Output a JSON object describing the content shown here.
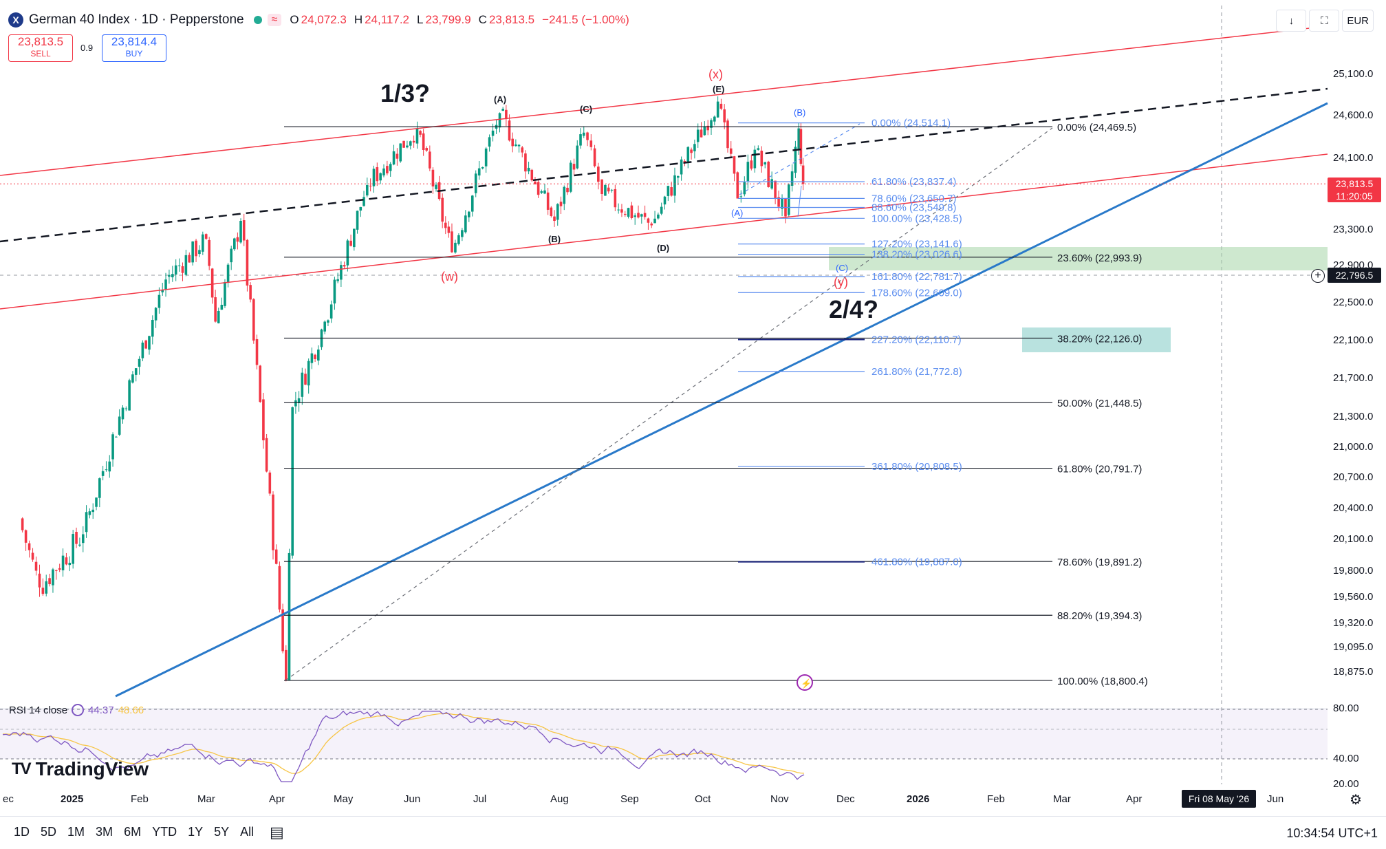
{
  "header": {
    "symbol_logo": "X",
    "title": "German 40 Index · 1D · Pepperstone",
    "wave_badge": "≈",
    "ohlc": [
      {
        "label": "O",
        "value": "24,072.3"
      },
      {
        "label": "H",
        "value": "24,117.2"
      },
      {
        "label": "L",
        "value": "23,799.9"
      },
      {
        "label": "C",
        "value": "23,813.5"
      },
      {
        "label": "",
        "value": "−241.5 (−1.00%)"
      }
    ]
  },
  "trade": {
    "sell_price": "23,813.5",
    "sell_label": "SELL",
    "spread": "0.9",
    "buy_price": "23,814.4",
    "buy_label": "BUY"
  },
  "toolbar_right": {
    "download_icon": "↓",
    "fullscreen_icon": "⛶",
    "currency": "EUR"
  },
  "price_axis": {
    "labels": [
      {
        "text": "25,100.0",
        "p": 25100
      },
      {
        "text": "24,600.0",
        "p": 24600
      },
      {
        "text": "24,100.0",
        "p": 24100
      },
      {
        "text": "23,300.0",
        "p": 23300
      },
      {
        "text": "22,900.0",
        "p": 22900
      },
      {
        "text": "22,500.0",
        "p": 22500
      },
      {
        "text": "22,100.0",
        "p": 22100
      },
      {
        "text": "21,700.0",
        "p": 21700
      },
      {
        "text": "21,300.0",
        "p": 21300
      },
      {
        "text": "21,000.0",
        "p": 21000
      },
      {
        "text": "20,700.0",
        "p": 20700
      },
      {
        "text": "20,400.0",
        "p": 20400
      },
      {
        "text": "20,100.0",
        "p": 20100
      },
      {
        "text": "19,800.0",
        "p": 19800
      },
      {
        "text": "19,560.0",
        "p": 19560
      },
      {
        "text": "19,320.0",
        "p": 19320
      },
      {
        "text": "19,095.0",
        "p": 19095
      },
      {
        "text": "18,875.0",
        "p": 18875
      }
    ],
    "current_price": "23,813.5",
    "countdown": "11:20:05",
    "crosshair_price": "22,796.5",
    "crosshair_plus": "+"
  },
  "fib_retracement_levels": [
    {
      "label": "0.00% (24,469.5)",
      "p": 24469.5
    },
    {
      "label": "23.60% (22,993.9)",
      "p": 22993.9
    },
    {
      "label": "38.20% (22,126.0)",
      "p": 22126.0
    },
    {
      "label": "50.00% (21,448.5)",
      "p": 21448.5
    },
    {
      "label": "61.80% (20,791.7)",
      "p": 20791.7
    },
    {
      "label": "78.60% (19,891.2)",
      "p": 19891.2
    },
    {
      "label": "88.20% (19,394.3)",
      "p": 19394.3
    },
    {
      "label": "100.00% (18,800.4)",
      "p": 18800.4
    }
  ],
  "fib_extension_levels": [
    {
      "label": "0.00% (24,514.1)",
      "p": 24514.1
    },
    {
      "label": "61.80% (23,837.4)",
      "p": 23837.4
    },
    {
      "label": "78.60% (23,650.7)",
      "p": 23650.7
    },
    {
      "label": "88.60% (23,549.8)",
      "p": 23549.8
    },
    {
      "label": "100.00% (23,428.5)",
      "p": 23428.5
    },
    {
      "label": "127.20% (23,141.6)",
      "p": 23141.6
    },
    {
      "label": "138.20% (23,026.6)",
      "p": 23026.6
    },
    {
      "label": "161.80% (22,781.7)",
      "p": 22781.7
    },
    {
      "label": "178.60% (22,609.0)",
      "p": 22609.0
    },
    {
      "label": "227.20% (22,110.7)",
      "p": 22110.7
    },
    {
      "label": "261.80% (21,772.8)",
      "p": 21772.8
    },
    {
      "label": "361.80% (20,808.5)",
      "p": 20808.5
    },
    {
      "label": "461.80% (19,887.0)",
      "p": 19887.0
    }
  ],
  "wave_labels": [
    {
      "text": "1/3?",
      "kind": "big"
    },
    {
      "text": "2/4?",
      "kind": "big"
    },
    {
      "text": "(A)",
      "kind": "black"
    },
    {
      "text": "(B)",
      "kind": "black"
    },
    {
      "text": "(C)",
      "kind": "black"
    },
    {
      "text": "(D)",
      "kind": "black"
    },
    {
      "text": "(E)",
      "kind": "black"
    },
    {
      "text": "(x)",
      "kind": "red"
    },
    {
      "text": "(w)",
      "kind": "red"
    },
    {
      "text": "(y)",
      "kind": "red"
    },
    {
      "text": "(A)",
      "kind": "blue"
    },
    {
      "text": "(B)",
      "kind": "blue"
    },
    {
      "text": "(C)",
      "kind": "blue"
    }
  ],
  "rsi": {
    "label": "RSI 14 close",
    "value1": "44.37",
    "value2": "48.66",
    "levels": [
      {
        "text": "80.00",
        "v": 80
      },
      {
        "text": "40.00",
        "v": 40
      },
      {
        "text": "20.00",
        "v": 20
      }
    ]
  },
  "branding": {
    "logo_mark": "TV",
    "name": "TradingView"
  },
  "time_axis": [
    {
      "text": "ec",
      "bold": false
    },
    {
      "text": "2025",
      "bold": true
    },
    {
      "text": "Feb",
      "bold": false
    },
    {
      "text": "Mar",
      "bold": false
    },
    {
      "text": "Apr",
      "bold": false
    },
    {
      "text": "May",
      "bold": false
    },
    {
      "text": "Jun",
      "bold": false
    },
    {
      "text": "Jul",
      "bold": false
    },
    {
      "text": "Aug",
      "bold": false
    },
    {
      "text": "Sep",
      "bold": false
    },
    {
      "text": "Oct",
      "bold": false
    },
    {
      "text": "Nov",
      "bold": false
    },
    {
      "text": "Dec",
      "bold": false
    },
    {
      "text": "2026",
      "bold": true
    },
    {
      "text": "Feb",
      "bold": false
    },
    {
      "text": "Mar",
      "bold": false
    },
    {
      "text": "Apr",
      "bold": false
    },
    {
      "text": "Jun",
      "bold": false
    }
  ],
  "crosshair_date": "Fri 08 May '26",
  "bottom_bar": {
    "ranges": [
      "1D",
      "5D",
      "1M",
      "3M",
      "6M",
      "YTD",
      "1Y",
      "5Y",
      "All"
    ],
    "clock": "10:34:54 UTC+1"
  },
  "colors": {
    "bull": "#089981",
    "bear": "#f23645",
    "channel": "#f23645",
    "trend": "#2979c9",
    "fib_ext": "#5b8def",
    "rsi": "#7e57c2",
    "rsi_ma": "#f7c545"
  },
  "chart_data": {
    "type": "candlestick",
    "title": "German 40 Index · 1D · Pepperstone",
    "last_close": 23813.5,
    "ylim": [
      18700,
      25300
    ],
    "swing_points": [
      {
        "date": "2024-12-09",
        "price": 20300
      },
      {
        "date": "2024-12-20",
        "price": 19650
      },
      {
        "date": "2025-01-10",
        "price": 20150
      },
      {
        "date": "2025-02-14",
        "price": 22750
      },
      {
        "date": "2025-03-03",
        "price": 23200
      },
      {
        "date": "2025-03-07",
        "price": 22300
      },
      {
        "date": "2025-03-18",
        "price": 23400
      },
      {
        "date": "2025-04-07",
        "price": 18800
      },
      {
        "date": "2025-04-10",
        "price": 21400
      },
      {
        "date": "2025-04-25",
        "price": 22300
      },
      {
        "date": "2025-05-14",
        "price": 23800
      },
      {
        "date": "2025-06-05",
        "price": 24450
      },
      {
        "date": "2025-06-20",
        "price": 23050
      },
      {
        "date": "2025-07-10",
        "price": 24630
      },
      {
        "date": "2025-08-01",
        "price": 23400
      },
      {
        "date": "2025-08-14",
        "price": 24400
      },
      {
        "date": "2025-08-22",
        "price": 23700
      },
      {
        "date": "2025-09-12",
        "price": 23350
      },
      {
        "date": "2025-10-09",
        "price": 24770
      },
      {
        "date": "2025-10-17",
        "price": 23650
      },
      {
        "date": "2025-10-24",
        "price": 24200
      },
      {
        "date": "2025-11-06",
        "price": 23450
      },
      {
        "date": "2025-11-12",
        "price": 24450
      },
      {
        "date": "2025-11-14",
        "price": 23813.5
      }
    ]
  }
}
